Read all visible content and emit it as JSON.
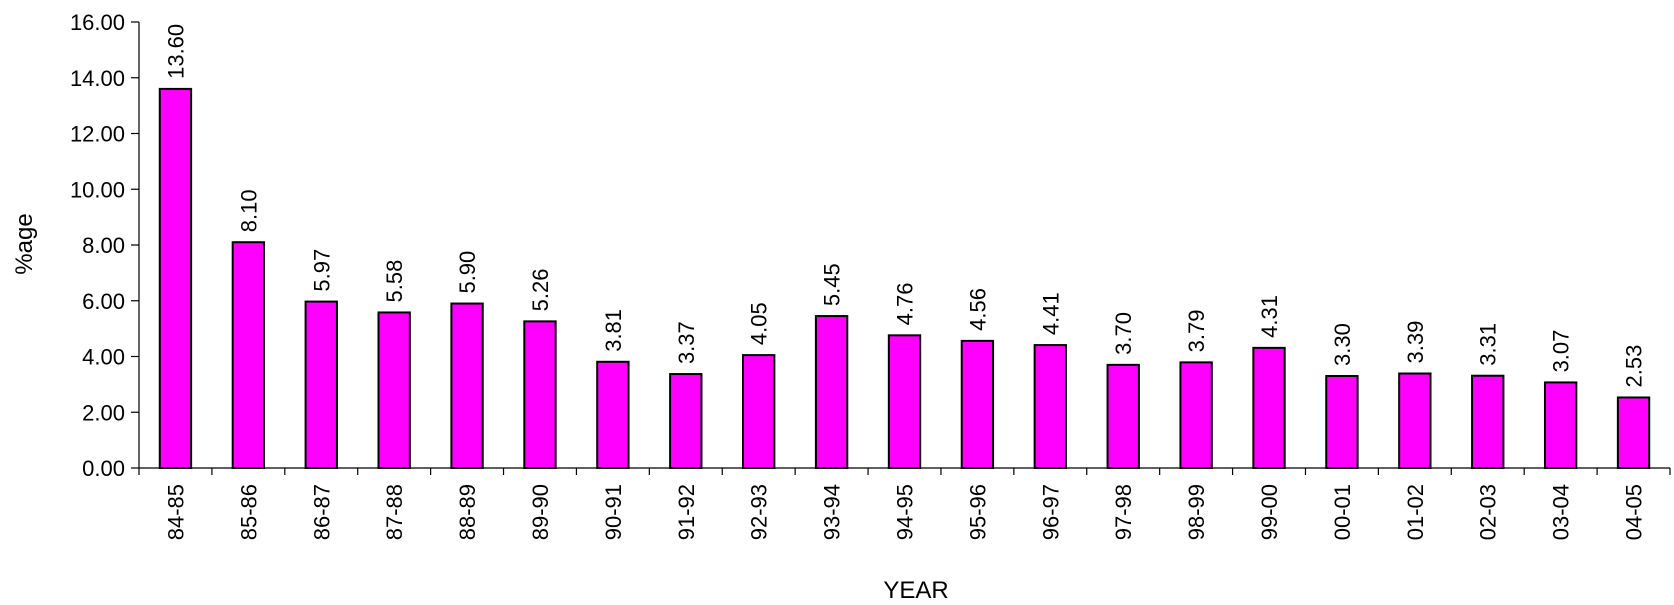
{
  "chart_data": {
    "type": "bar",
    "title": "",
    "xlabel": "YEAR",
    "ylabel": "%age",
    "ylim": [
      0,
      16
    ],
    "ytick_step": 2,
    "ytick_decimals": 2,
    "grid": false,
    "legend": "none",
    "bar_color": "#FF00FF",
    "bar_edge_color": "#000000",
    "categories": [
      "84-85",
      "85-86",
      "86-87",
      "87-88",
      "88-89",
      "89-90",
      "90-91",
      "91-92",
      "92-93",
      "93-94",
      "94-95",
      "95-96",
      "96-97",
      "97-98",
      "98-99",
      "99-00",
      "00-01",
      "01-02",
      "02-03",
      "03-04",
      "04-05"
    ],
    "values": [
      13.6,
      8.1,
      5.97,
      5.58,
      5.9,
      5.26,
      3.81,
      3.37,
      4.05,
      5.45,
      4.76,
      4.56,
      4.41,
      3.7,
      3.79,
      4.31,
      3.3,
      3.39,
      3.31,
      3.07,
      2.53
    ]
  }
}
